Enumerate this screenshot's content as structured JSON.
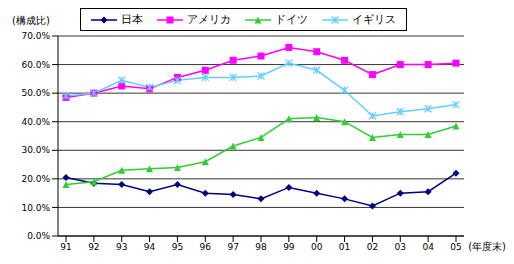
{
  "chart_data": {
    "type": "line",
    "y_label": "(構成比)",
    "x_label": "(年度末)",
    "categories": [
      "91",
      "92",
      "93",
      "94",
      "95",
      "96",
      "97",
      "98",
      "99",
      "00",
      "01",
      "02",
      "03",
      "04",
      "05"
    ],
    "series": [
      {
        "name": "日本",
        "color": "#000080",
        "marker": "diamond",
        "values": [
          20.5,
          18.5,
          18,
          15.5,
          18,
          15,
          14.5,
          13,
          17,
          15,
          13,
          10.5,
          15,
          15.5,
          22
        ]
      },
      {
        "name": "アメリカ",
        "color": "#ff00ff",
        "marker": "square",
        "values": [
          48.5,
          50,
          52.5,
          51.5,
          55.5,
          58,
          61.5,
          63,
          66,
          64.5,
          61.5,
          56.5,
          60,
          60,
          60.5
        ]
      },
      {
        "name": "ドイツ",
        "color": "#33cc33",
        "marker": "triangle",
        "values": [
          18,
          19,
          23,
          23.5,
          24,
          26,
          31.5,
          34.5,
          41,
          41.5,
          40,
          34.5,
          35.5,
          35.5,
          38.5
        ]
      },
      {
        "name": "イギリス",
        "color": "#66ccff",
        "marker": "x",
        "values": [
          49,
          50,
          54.5,
          52,
          54.5,
          55.5,
          55.5,
          56,
          60.5,
          58,
          51,
          42,
          43.5,
          44.5,
          46
        ]
      }
    ],
    "ylim": [
      0,
      70
    ],
    "yticks": [
      {
        "value": 0,
        "label": "0.0%"
      },
      {
        "value": 10,
        "label": "10.0%"
      },
      {
        "value": 20,
        "label": "20.0%"
      },
      {
        "value": 30,
        "label": "30.0%"
      },
      {
        "value": 40,
        "label": "40.0%"
      },
      {
        "value": 50,
        "label": "50.0%"
      },
      {
        "value": 60,
        "label": "60.0%"
      },
      {
        "value": 70,
        "label": "70.0%"
      }
    ],
    "grid": true,
    "legend": "top"
  }
}
